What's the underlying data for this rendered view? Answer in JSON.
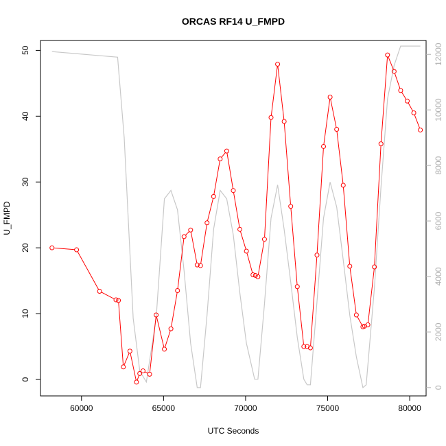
{
  "chart_data": {
    "type": "line",
    "title": "ORCAS RF14 U_FMPD",
    "xlabel": "UTC Seconds",
    "ylabel": "U_FMPD",
    "xlim": [
      57500,
      81000
    ],
    "ylim": [
      -2.5,
      51.5
    ],
    "y2lim": [
      -300,
      12500
    ],
    "x_ticks": [
      60000,
      65000,
      70000,
      75000,
      80000
    ],
    "y_ticks": [
      0,
      10,
      20,
      30,
      40,
      50
    ],
    "y2_ticks": [
      0,
      2000,
      4000,
      6000,
      8000,
      10000,
      12000
    ],
    "primary_color": "#ff0000",
    "secondary_color": "#c8c8c8",
    "series": [
      {
        "axis": "left",
        "style": "line+circle",
        "x": [
          58200,
          59700,
          61100,
          62100,
          62250,
          62550,
          62950,
          63350,
          63550,
          63750,
          64150,
          64550,
          65050,
          65450,
          65850,
          66250,
          66650,
          67050,
          67250,
          67650,
          68050,
          68450,
          68850,
          69250,
          69650,
          70050,
          70450,
          70600,
          70750,
          71150,
          71550,
          71950,
          72350,
          72750,
          73150,
          73550,
          73750,
          73950,
          74350,
          74750,
          75150,
          75550,
          75950,
          76350,
          76750,
          77150,
          77250,
          77450,
          77850,
          78250,
          78650,
          79050,
          79450,
          79850,
          80250,
          80650
        ],
        "y": [
          20.0,
          19.7,
          13.4,
          12.1,
          12.0,
          1.9,
          4.3,
          -0.4,
          0.9,
          1.3,
          0.8,
          9.8,
          4.6,
          7.7,
          13.5,
          21.7,
          22.7,
          17.4,
          17.3,
          23.8,
          27.8,
          33.5,
          34.7,
          28.7,
          22.8,
          19.5,
          15.9,
          15.8,
          15.6,
          21.3,
          39.8,
          47.9,
          39.2,
          26.3,
          14.1,
          5.0,
          5.0,
          4.8,
          18.9,
          35.4,
          42.9,
          38.0,
          29.5,
          17.2,
          9.8,
          8.0,
          8.1,
          8.3,
          17.1,
          35.8,
          49.3,
          46.8,
          43.9,
          42.3,
          40.5,
          37.9
        ]
      },
      {
        "axis": "right",
        "style": "line",
        "x": [
          58200,
          62200,
          62600,
          63150,
          63550,
          63950,
          64550,
          65050,
          65450,
          65850,
          66250,
          66650,
          67050,
          67250,
          67650,
          68050,
          68450,
          68850,
          69250,
          69650,
          70050,
          70550,
          70750,
          71150,
          71550,
          71950,
          72350,
          72750,
          73150,
          73550,
          73750,
          73950,
          74350,
          74750,
          75150,
          75550,
          75950,
          76350,
          76750,
          77150,
          77350,
          77850,
          78250,
          78650,
          79050,
          79450,
          80650
        ],
        "y": [
          12100,
          11900,
          9000,
          2500,
          600,
          200,
          2500,
          6800,
          7100,
          6400,
          4200,
          1600,
          0,
          0,
          2600,
          5700,
          7100,
          6800,
          5500,
          3400,
          1600,
          300,
          300,
          3000,
          6100,
          7300,
          5700,
          3800,
          1800,
          300,
          100,
          100,
          3100,
          6100,
          7400,
          6500,
          4600,
          2600,
          1100,
          0,
          100,
          3600,
          7200,
          10400,
          11600,
          12300,
          12300
        ]
      }
    ]
  }
}
